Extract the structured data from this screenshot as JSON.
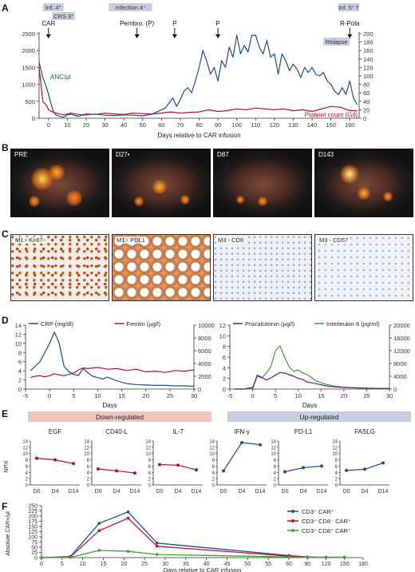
{
  "panels": {
    "A": {
      "label": "A",
      "events_top": [
        "Inf. 4°",
        "CRS 3°",
        "Infection 4°",
        "Relapse",
        "Inf. 5° †"
      ],
      "arrows": [
        "CAR",
        "Pembro. (P)",
        "P",
        "P",
        "R-Pola"
      ],
      "series_labels": {
        "anc": "ANC/µl",
        "plt": "Platelet count (G/l)"
      },
      "xlabel": "Days relative to CAR infusion",
      "colors": {
        "anc": "#1f4e96",
        "plt": "#b3122b",
        "event": "#c7cde0"
      }
    },
    "B": {
      "label": "B",
      "frames": [
        "PRE",
        "D27•",
        "D87",
        "D143"
      ]
    },
    "C": {
      "label": "C",
      "frames": [
        "M1 - Ki-67",
        "M1 - PDL1",
        "M3 - CD8",
        "M3 - CD57"
      ]
    },
    "D": {
      "label": "D",
      "xlabel": "Days",
      "left_legend": [
        "CRP (mg/dl)",
        "Ferritin (µg/l)"
      ],
      "right_legend": [
        "Procalcitonin (µg/l)",
        "Interleukin-6 (pg/ml)"
      ],
      "colors": {
        "crp": "#1f4e96",
        "ferritin": "#b3122b",
        "pct": "#6a1b8a",
        "il6": "#3aa532"
      }
    },
    "E": {
      "label": "E",
      "down_label": "Down-regulated",
      "up_label": "Up-regulated",
      "ylabel": "NPX",
      "colors": {
        "down_bg": "#f2c2bd",
        "up_bg": "#c9cde0",
        "down": "#b3122b",
        "up": "#1f4e96"
      }
    },
    "F": {
      "label": "F",
      "ylabel": "Absolute CAR+/µl",
      "xlabel": "Days relative to CAR infusion",
      "colors": {
        "cd3": "#1f4e96",
        "cd8neg": "#cc1133",
        "cd8pos": "#3aa532"
      }
    }
  },
  "chart_data": [
    {
      "id": "A",
      "type": "line",
      "xlabel": "Days relative to CAR infusion",
      "ylabel": "ANC/µl",
      "y2label": "Platelet count (G/l)",
      "xlim": [
        -5,
        165
      ],
      "ylim": [
        0,
        2500
      ],
      "y2lim": [
        0,
        200
      ],
      "xticks": [
        0,
        10,
        20,
        30,
        40,
        50,
        60,
        70,
        80,
        90,
        100,
        110,
        120,
        130,
        140,
        150,
        160
      ],
      "yticks": [
        0,
        500,
        1000,
        1500,
        2000,
        2500
      ],
      "y2ticks": [
        0,
        20,
        40,
        60,
        80,
        100,
        120,
        140,
        160,
        180,
        200
      ],
      "events": [
        {
          "label": "Inf. 4°",
          "from": -3,
          "to": 8
        },
        {
          "label": "CRS 3°",
          "from": 2,
          "to": 14
        },
        {
          "label": "Infection 4°",
          "from": 32,
          "to": 55
        },
        {
          "label": "Relapse",
          "from": 146,
          "to": 160
        },
        {
          "label": "Inf. 5° †",
          "from": 154,
          "to": 165
        }
      ],
      "arrows": [
        {
          "label": "CAR",
          "x": 0
        },
        {
          "label": "Pembro. (P)",
          "x": 47
        },
        {
          "label": "P",
          "x": 67
        },
        {
          "label": "P",
          "x": 90
        },
        {
          "label": "R-Pola",
          "x": 160
        }
      ],
      "series": [
        {
          "name": "ANC/µl",
          "axis": "left",
          "x": [
            -5,
            -3,
            -1,
            0,
            1,
            2,
            3,
            4,
            5,
            6,
            8,
            10,
            12,
            14,
            16,
            18,
            20,
            25,
            30,
            35,
            40,
            45,
            50,
            55,
            60,
            62,
            64,
            66,
            68,
            70,
            72,
            74,
            76,
            78,
            80,
            82,
            84,
            86,
            88,
            90,
            92,
            94,
            96,
            98,
            100,
            102,
            104,
            106,
            108,
            110,
            112,
            114,
            116,
            118,
            120,
            122,
            124,
            126,
            128,
            130,
            132,
            134,
            136,
            138,
            140,
            142,
            144,
            146,
            148,
            150,
            152,
            154,
            156,
            158,
            160,
            162,
            164
          ],
          "y": [
            1650,
            1200,
            900,
            700,
            500,
            300,
            150,
            100,
            80,
            50,
            30,
            100,
            120,
            80,
            60,
            90,
            100,
            120,
            90,
            80,
            100,
            90,
            70,
            120,
            250,
            300,
            450,
            600,
            350,
            550,
            800,
            900,
            750,
            1100,
            1500,
            2000,
            1700,
            1300,
            1500,
            1100,
            1700,
            1500,
            2100,
            1800,
            2450,
            1900,
            2150,
            1950,
            2450,
            2450,
            2100,
            1900,
            2300,
            1800,
            1900,
            1300,
            1900,
            1700,
            1400,
            1600,
            1450,
            1200,
            1500,
            1350,
            1500,
            1300,
            1250,
            1350,
            1100,
            1000,
            800,
            700,
            900,
            700,
            1100,
            600,
            400
          ]
        },
        {
          "name": "Platelet count (G/l)",
          "axis": "right",
          "x": [
            -5,
            -3,
            -1,
            0,
            2,
            4,
            6,
            8,
            10,
            12,
            14,
            16,
            18,
            20,
            25,
            30,
            35,
            40,
            45,
            50,
            55,
            60,
            65,
            70,
            75,
            80,
            85,
            90,
            95,
            100,
            105,
            110,
            115,
            120,
            125,
            130,
            135,
            140,
            145,
            150,
            155,
            160,
            164
          ],
          "y": [
            120,
            40,
            30,
            20,
            15,
            12,
            10,
            8,
            10,
            12,
            10,
            9,
            8,
            10,
            9,
            12,
            10,
            9,
            12,
            11,
            10,
            12,
            15,
            12,
            14,
            15,
            20,
            16,
            18,
            22,
            20,
            24,
            22,
            20,
            22,
            18,
            20,
            16,
            22,
            28,
            26,
            18,
            18
          ]
        }
      ]
    },
    {
      "id": "D-left",
      "type": "line",
      "xlabel": "Days",
      "xlim": [
        -5,
        30
      ],
      "ylim": [
        0,
        14
      ],
      "y2lim": [
        0,
        10000
      ],
      "xticks": [
        -5,
        0,
        5,
        10,
        15,
        20,
        25,
        30
      ],
      "yticks": [
        0,
        2,
        4,
        6,
        8,
        10,
        12,
        14
      ],
      "y2ticks": [
        0,
        2000,
        4000,
        6000,
        8000,
        10000
      ],
      "series": [
        {
          "name": "CRP (mg/dl)",
          "axis": "left",
          "x": [
            -4,
            -3,
            -2,
            -1,
            0,
            1,
            2,
            3,
            4,
            5,
            6,
            7,
            8,
            9,
            10,
            11,
            12,
            13,
            14,
            15,
            16,
            18,
            20,
            22,
            24,
            26,
            28,
            30
          ],
          "y": [
            4,
            5,
            6,
            8,
            10,
            12.5,
            10,
            5,
            3.8,
            3.2,
            3,
            4.5,
            3.5,
            2.8,
            2.5,
            2.2,
            2.6,
            2.2,
            1.8,
            1.5,
            1.2,
            1,
            0.9,
            0.8,
            0.8,
            0.7,
            0.7,
            0.6
          ]
        },
        {
          "name": "Ferritin (µg/l)",
          "axis": "right",
          "x": [
            -4,
            -3,
            -2,
            -1,
            0,
            1,
            2,
            3,
            4,
            5,
            6,
            7,
            8,
            10,
            12,
            14,
            16,
            18,
            20,
            22,
            24,
            26,
            28,
            30
          ],
          "y": [
            1800,
            2000,
            2100,
            1900,
            2100,
            2400,
            2200,
            2100,
            2300,
            2500,
            3000,
            3300,
            3200,
            3400,
            3100,
            3200,
            2900,
            3100,
            2700,
            2800,
            2600,
            2900,
            2800,
            3000
          ]
        }
      ]
    },
    {
      "id": "D-right",
      "type": "line",
      "xlabel": "Days",
      "xlim": [
        -5,
        30
      ],
      "ylim": [
        0,
        12
      ],
      "y2lim": [
        0,
        20000
      ],
      "xticks": [
        -5,
        0,
        5,
        10,
        15,
        20,
        25,
        30
      ],
      "yticks": [
        0,
        2,
        4,
        6,
        8,
        10,
        12
      ],
      "y2ticks": [
        0,
        4000,
        8000,
        12000,
        16000,
        20000
      ],
      "series": [
        {
          "name": "Procalcitonin (µg/l)",
          "axis": "left",
          "x": [
            -4,
            -2,
            0,
            1,
            2,
            3,
            4,
            5,
            6,
            7,
            8,
            9,
            10,
            11,
            12,
            14,
            16,
            18,
            20,
            22,
            24,
            26,
            28,
            30
          ],
          "y": [
            0,
            0,
            0.3,
            2.6,
            2.2,
            1.7,
            2.1,
            2.6,
            3.1,
            3.0,
            2.7,
            2.4,
            2.0,
            1.8,
            1.3,
            1.0,
            0.6,
            0.4,
            0.3,
            0.25,
            0.2,
            0.15,
            0.1,
            0.1
          ]
        },
        {
          "name": "Interleukin-6 (pg/ml)",
          "axis": "right",
          "x": [
            -4,
            -2,
            0,
            1,
            2,
            3,
            4,
            5,
            6,
            7,
            8,
            9,
            10,
            11,
            12,
            14,
            16,
            18,
            20,
            22,
            24,
            26,
            28,
            30
          ],
          "y": [
            0,
            0,
            200,
            4000,
            3500,
            5000,
            7000,
            12000,
            13500,
            10000,
            7000,
            5500,
            6000,
            5000,
            4500,
            2500,
            1500,
            900,
            600,
            400,
            300,
            200,
            200,
            200
          ]
        }
      ]
    },
    {
      "id": "E",
      "type": "line",
      "ylabel": "NPX",
      "categories": [
        "D0",
        "D4",
        "D14"
      ],
      "ylim": [
        0,
        14
      ],
      "yticks": [
        0,
        2,
        4,
        6,
        8,
        10,
        12,
        14
      ],
      "subplots": [
        {
          "name": "EGF",
          "group": "down",
          "values": [
            8.5,
            8.0,
            6.8
          ]
        },
        {
          "name": "CD40-L",
          "group": "down",
          "values": [
            5.1,
            4.5,
            3.8
          ]
        },
        {
          "name": "IL-7",
          "group": "down",
          "values": [
            6.5,
            6.3,
            4.8
          ]
        },
        {
          "name": "IFN-γ",
          "group": "up",
          "values": [
            4.5,
            13.5,
            12.8
          ]
        },
        {
          "name": "PD-L1",
          "group": "up",
          "values": [
            4.2,
            5.5,
            6.0
          ]
        },
        {
          "name": "FASLG",
          "group": "up",
          "values": [
            4.6,
            5.0,
            7.0
          ]
        }
      ]
    },
    {
      "id": "F",
      "type": "line",
      "xlabel": "Days relative to CAR infusion",
      "ylabel": "Absolute CAR+/µl",
      "xticks": [
        0,
        5,
        10,
        15,
        20,
        25,
        30,
        35,
        40,
        45,
        50,
        55,
        60,
        90,
        120,
        150,
        180
      ],
      "yticks": [
        0,
        25,
        50,
        75,
        100,
        125,
        150,
        175,
        200,
        225,
        250
      ],
      "ylim": [
        0,
        250
      ],
      "series": [
        {
          "name": "CD3⁺ CAR⁺",
          "x": [
            0,
            7,
            14,
            21,
            28,
            60,
            90,
            120,
            150
          ],
          "y": [
            0,
            5,
            165,
            220,
            70,
            10,
            3,
            2,
            2
          ]
        },
        {
          "name": "CD3⁺ CD8⁻ CAR⁺",
          "x": [
            0,
            7,
            14,
            21,
            28,
            60,
            90,
            120,
            150
          ],
          "y": [
            0,
            3,
            130,
            190,
            55,
            7,
            2,
            1,
            1
          ]
        },
        {
          "name": "CD3⁺ CD8⁺ CAR⁺",
          "x": [
            0,
            7,
            14,
            21,
            28,
            60,
            90,
            120,
            150
          ],
          "y": [
            0,
            1,
            35,
            30,
            15,
            3,
            1,
            1,
            1
          ]
        }
      ]
    }
  ]
}
